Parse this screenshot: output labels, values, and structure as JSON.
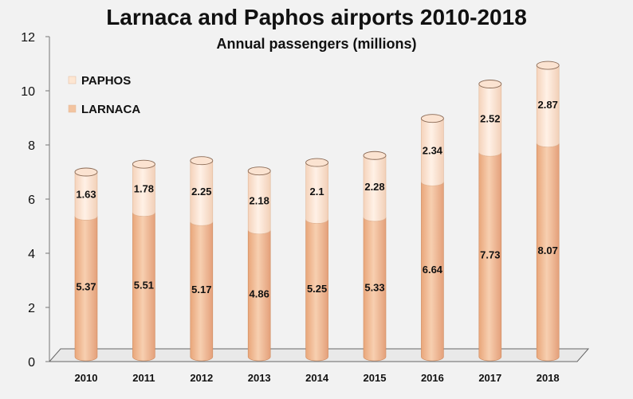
{
  "chart_data": {
    "type": "bar",
    "stacked": true,
    "title": "Larnaca and Paphos airports 2010-2018",
    "subtitle": "Annual passengers (millions)",
    "categories": [
      "2010",
      "2011",
      "2012",
      "2013",
      "2014",
      "2015",
      "2016",
      "2017",
      "2018"
    ],
    "series": [
      {
        "name": "LARNACA",
        "values": [
          5.37,
          5.51,
          5.17,
          4.86,
          5.25,
          5.33,
          6.64,
          7.73,
          8.07
        ],
        "color": "#f3c4a0"
      },
      {
        "name": "PAPHOS",
        "values": [
          1.63,
          1.78,
          2.25,
          2.18,
          2.1,
          2.28,
          2.34,
          2.52,
          2.87
        ],
        "color": "#fde6d2"
      }
    ],
    "legend": [
      {
        "name": "PAPHOS",
        "color": "#fde6d2"
      },
      {
        "name": "LARNACA",
        "color": "#f3c4a0"
      }
    ],
    "ylim": [
      0,
      12
    ],
    "yticks": [
      "0",
      "2",
      "4",
      "6",
      "8",
      "10",
      "12"
    ],
    "grid": false,
    "legend_position": "top-left"
  }
}
